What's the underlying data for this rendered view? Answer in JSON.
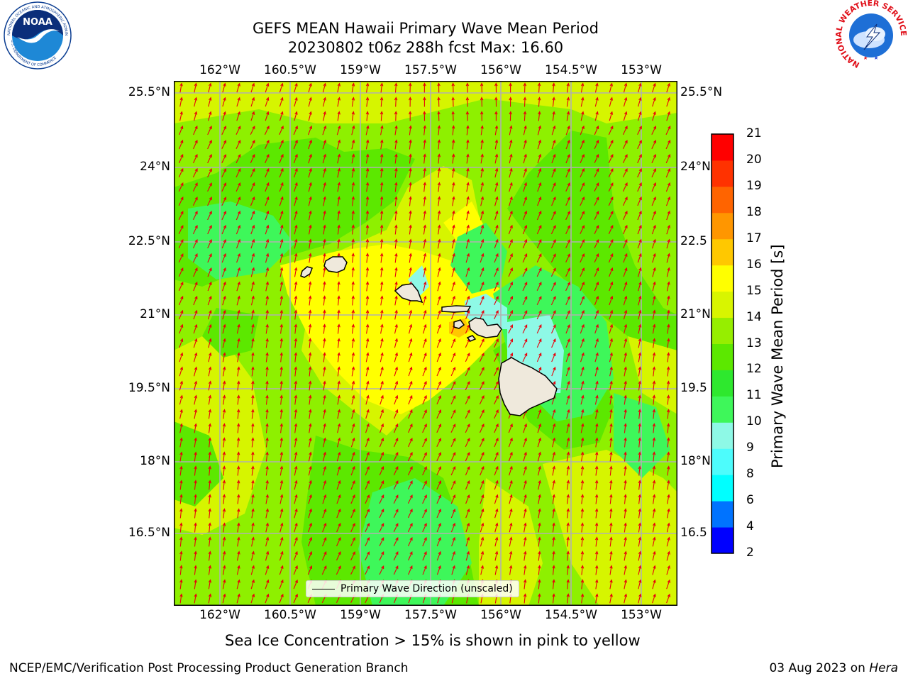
{
  "header": {
    "title_line1": "GEFS MEAN Hawaii Primary Wave Mean Period",
    "title_line2": "20230802 t06z 288h fcst   Max: 16.60"
  },
  "map": {
    "lon_labels": [
      "162°W",
      "160.5°W",
      "159°W",
      "157.5°W",
      "156°W",
      "154.5°W",
      "153°W"
    ],
    "lat_labels_left": [
      "25.5°N",
      "24°N",
      "22.5°N",
      "21°N",
      "19.5°N",
      "18°N",
      "16.5°N"
    ],
    "lat_labels_right": [
      "25.5°N",
      "24°N",
      "22.5",
      "21°N",
      "19.5",
      "18°N",
      "16.5"
    ],
    "legend_label": "Primary Wave Direction (unscaled)",
    "arrow_color": "#e8000b",
    "land_color": "#efe9dc"
  },
  "colorbar": {
    "title": "Primary Wave Mean Period [s]",
    "levels": [
      "2",
      "4",
      "6",
      "8",
      "9",
      "10",
      "11",
      "12",
      "13",
      "14",
      "15",
      "16",
      "17",
      "18",
      "19",
      "20",
      "21"
    ],
    "colors": [
      "#0000ff",
      "#0073ff",
      "#00ffff",
      "#4dfcfc",
      "#8ef9e6",
      "#3ef75a",
      "#2ee82e",
      "#5ce800",
      "#96ee00",
      "#d8f500",
      "#ffff00",
      "#ffc800",
      "#ff9600",
      "#ff6400",
      "#ff3200",
      "#ff0000"
    ]
  },
  "caption": "Sea Ice Concentration > 15% is shown in pink to yellow",
  "footer": {
    "left": "NCEP/EMC/Verification Post Processing Product Generation Branch",
    "right_prefix": "03 Aug 2023 on ",
    "right_host": "Hera"
  },
  "logos": {
    "noaa_text": "NOAA",
    "noaa_ring_top": "NATIONAL OCEANIC AND ATMOSPHERIC ADMINISTRATION",
    "noaa_ring_bottom": "U.S. DEPARTMENT OF COMMERCE",
    "nws_ring": "NATIONAL WEATHER SERVICE"
  }
}
